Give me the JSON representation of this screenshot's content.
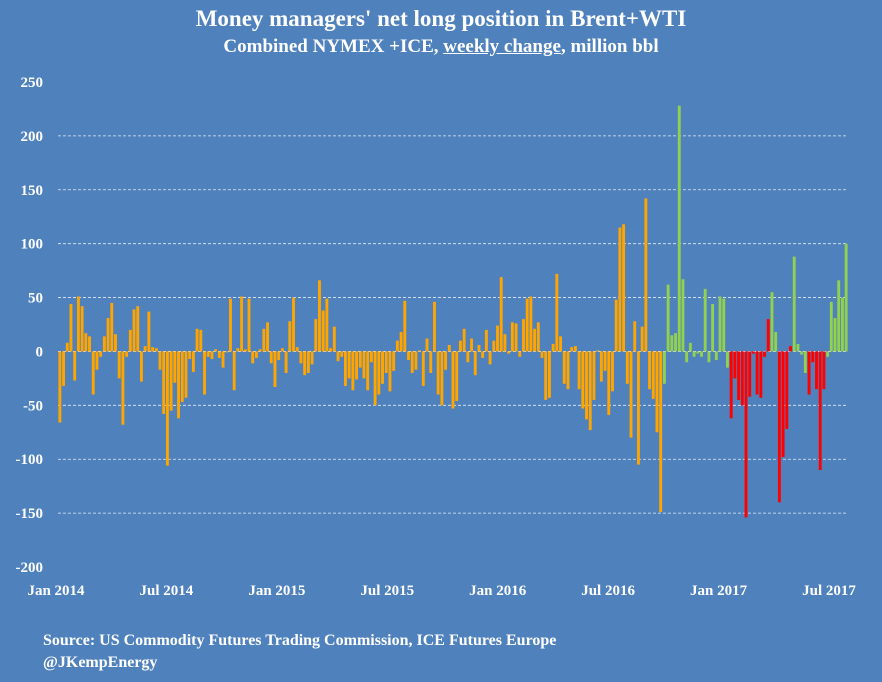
{
  "title": "Money managers' net long position in  Brent+WTI",
  "subtitle": {
    "before": "Combined NYMEX +ICE, ",
    "underlined": "weekly change",
    "after": ", million bbl"
  },
  "footer": {
    "source": "Source: US Commodity Futures Trading Commission, ICE Futures Europe",
    "handle": "@JKempEnergy"
  },
  "chart_data": {
    "type": "bar",
    "title": "Money managers' net long position in  Brent+WTI",
    "subtitle": "Combined NYMEX +ICE, weekly change, million bbl",
    "xlabel": "",
    "ylabel": "",
    "ylim": [
      -200,
      250
    ],
    "yticks": [
      250,
      200,
      150,
      100,
      50,
      0,
      -50,
      -100,
      -150,
      -200
    ],
    "xtick_labels": [
      "Jan 2014",
      "Jul 2014",
      "Jan 2015",
      "Jul 2015",
      "Jan 2016",
      "Jul 2016",
      "Jan 2017",
      "Jul 2017"
    ],
    "grid": "horizontal dashed",
    "legend": "none",
    "colors": {
      "orange": "#ffa500",
      "green": "#92d050",
      "red": "#ff0000",
      "background": "#4f81bd"
    },
    "values": [
      -66,
      -32,
      8,
      44,
      -27,
      51,
      42,
      17,
      14,
      -40,
      -17,
      -5,
      14,
      31,
      45,
      16,
      -25,
      -68,
      -5,
      20,
      39,
      42,
      -28,
      5,
      37,
      4,
      3,
      -17,
      -58,
      -106,
      -55,
      -29,
      -62,
      -47,
      -43,
      -7,
      -19,
      21,
      20,
      -40,
      -5,
      -7,
      2,
      -6,
      -15,
      0,
      49,
      -36,
      3,
      51,
      2,
      49,
      -11,
      -6,
      2,
      21,
      27,
      -11,
      -33,
      -8,
      3,
      -20,
      28,
      50,
      4,
      -11,
      -22,
      -20,
      -12,
      30,
      66,
      38,
      49,
      3,
      23,
      -9,
      -5,
      -32,
      -25,
      -36,
      -26,
      -15,
      -25,
      -36,
      -10,
      -50,
      -40,
      -30,
      -20,
      -37,
      -18,
      10,
      18,
      47,
      -8,
      -20,
      -17,
      1,
      -32,
      12,
      -20,
      46,
      -40,
      -50,
      -17,
      6,
      -53,
      -46,
      10,
      21,
      -10,
      12,
      -22,
      6,
      -6,
      20,
      -12,
      10,
      24,
      69,
      16,
      -2,
      27,
      26,
      -5,
      30,
      49,
      51,
      21,
      27,
      -6,
      -45,
      -43,
      7,
      72,
      14,
      -30,
      -35,
      4,
      5,
      -35,
      -53,
      -63,
      -73,
      -45,
      1,
      -28,
      -18,
      -59,
      -37,
      48,
      115,
      118,
      -30,
      -80,
      28,
      -105,
      23,
      142,
      -35,
      -44,
      -75,
      -149,
      -30,
      62,
      15,
      17,
      228,
      67,
      -10,
      8,
      -5,
      -2,
      -5,
      58,
      -10,
      44,
      -8,
      51,
      49,
      -15,
      -62,
      -25,
      -45,
      -50,
      -154,
      -42,
      -2,
      -40,
      -43,
      -5,
      30,
      55,
      18,
      -140,
      -98,
      -72,
      5,
      88,
      7,
      -3,
      -20,
      -40,
      -10,
      -35,
      -110,
      -35,
      -5,
      46,
      31,
      66,
      50,
      100
    ],
    "color_index": [
      0,
      0,
      0,
      0,
      0,
      0,
      0,
      0,
      0,
      0,
      0,
      0,
      0,
      0,
      0,
      0,
      0,
      0,
      0,
      0,
      0,
      0,
      0,
      0,
      0,
      0,
      0,
      0,
      0,
      0,
      0,
      0,
      0,
      0,
      0,
      0,
      0,
      0,
      0,
      0,
      0,
      0,
      0,
      0,
      0,
      0,
      0,
      0,
      0,
      0,
      0,
      0,
      0,
      0,
      0,
      0,
      0,
      0,
      0,
      0,
      0,
      0,
      0,
      0,
      0,
      0,
      0,
      0,
      0,
      0,
      0,
      0,
      0,
      0,
      0,
      0,
      0,
      0,
      0,
      0,
      0,
      0,
      0,
      0,
      0,
      0,
      0,
      0,
      0,
      0,
      0,
      0,
      0,
      0,
      0,
      0,
      0,
      0,
      0,
      0,
      0,
      0,
      0,
      0,
      0,
      0,
      0,
      0,
      0,
      0,
      0,
      0,
      0,
      0,
      0,
      0,
      0,
      0,
      0,
      0,
      0,
      0,
      0,
      0,
      0,
      0,
      0,
      0,
      0,
      0,
      0,
      0,
      0,
      0,
      0,
      0,
      0,
      0,
      0,
      0,
      0,
      0,
      0,
      0,
      0,
      0,
      0,
      0,
      0,
      0,
      0,
      0,
      0,
      0,
      0,
      0,
      0,
      0,
      0,
      0,
      0,
      0,
      0,
      1,
      1,
      1,
      1,
      1,
      1,
      1,
      1,
      1,
      1,
      1,
      1,
      1,
      1,
      1,
      1,
      1,
      1,
      2,
      2,
      2,
      2,
      2,
      2,
      2,
      2,
      2,
      2,
      2,
      1,
      1,
      2,
      2,
      2,
      2,
      1,
      1,
      1,
      1,
      2,
      2,
      2,
      2,
      2,
      1,
      1,
      1,
      1,
      1,
      1
    ]
  }
}
